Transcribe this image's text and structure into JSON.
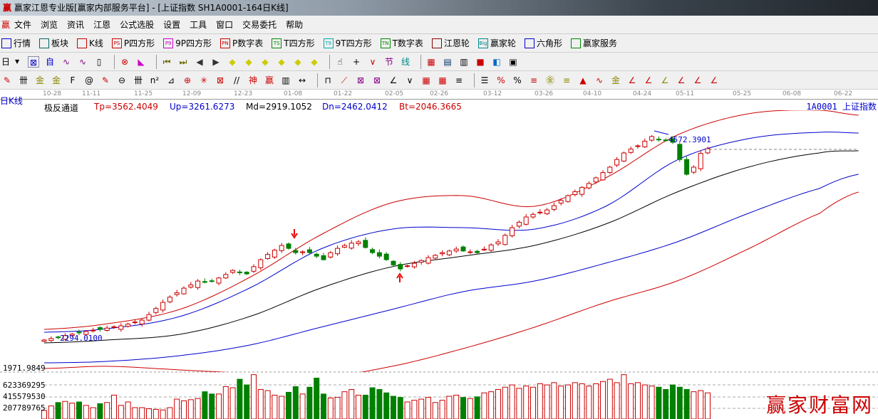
{
  "window": {
    "title": "赢家江恩专业版[赢家内部服务平台] - [上证指数  SH1A0001-164日K线]",
    "logo": "赢"
  },
  "menu": [
    "文件",
    "浏览",
    "资讯",
    "江恩",
    "公式选股",
    "设置",
    "工具",
    "窗口",
    "交易委托",
    "帮助"
  ],
  "toolbar1": [
    {
      "icon": "grid-icon",
      "label": "行情"
    },
    {
      "icon": "blocks-icon",
      "label": "板块"
    },
    {
      "icon": "candle-icon",
      "label": "K线"
    },
    {
      "icon": "PS",
      "label": "P四方形"
    },
    {
      "icon": "P9",
      "label": "9P四方形"
    },
    {
      "icon": "PN",
      "label": "P数字表"
    },
    {
      "icon": "TS",
      "label": "T四方形"
    },
    {
      "icon": "T9",
      "label": "9T四方形"
    },
    {
      "icon": "TN",
      "label": "T数字表"
    },
    {
      "icon": "target-icon",
      "label": "江恩轮"
    },
    {
      "icon": "Big",
      "label": "赢家轮"
    },
    {
      "icon": "hexagon-icon",
      "label": "六角形"
    },
    {
      "icon": "dollar-icon",
      "label": "赢家服务"
    }
  ],
  "period": "日",
  "header": {
    "left": "日K线",
    "indicator": "极反通道",
    "tp": "Tp=3562.4049",
    "up": "Up=3261.6273",
    "md": "Md=2919.1052",
    "dn": "Dn=2462.0412",
    "bt": "Bt=2046.3665",
    "symbol": "1A0001 上证指数"
  },
  "dates": [
    "10-28",
    "11-11",
    "11-25",
    "12-09",
    "12-23",
    "01-08",
    "01-22",
    "02-05",
    "02-26",
    "03-12",
    "03-26",
    "04-10",
    "04-24",
    "05-11",
    "05-25",
    "06-08",
    "06-22"
  ],
  "annotations": {
    "low": "2294.0100",
    "high": "4572.3901",
    "band_floor": "1971.9849"
  },
  "volume_axis": [
    "623369295",
    "415579530",
    "207789765"
  ],
  "watermark": "赢家财富网",
  "colors": {
    "up": "#cc0000",
    "down": "#008000",
    "tp": "#cc0000",
    "upband": "#0000cc",
    "md": "#000000",
    "dn": "#0000cc",
    "bt": "#cc0000"
  },
  "chart_data": {
    "type": "candlestick",
    "closes": [
      2278,
      2295,
      2310,
      2330,
      2345,
      2360,
      2376,
      2390,
      2400,
      2415,
      2430,
      2441,
      2460,
      2485,
      2506,
      2570,
      2640,
      2710,
      2770,
      2820,
      2873,
      2910,
      2955,
      2940,
      2955,
      2990,
      3030,
      3077,
      3050,
      3037,
      3120,
      3200,
      3260,
      3310,
      3363,
      3330,
      3281,
      3290,
      3281,
      3240,
      3200,
      3280,
      3330,
      3363,
      3390,
      3404,
      3340,
      3281,
      3240,
      3200,
      3140,
      3094,
      3130,
      3159,
      3190,
      3224,
      3250,
      3280,
      3300,
      3322,
      3300,
      3290,
      3281,
      3320,
      3370,
      3404,
      3480,
      3567,
      3630,
      3690,
      3720,
      3745,
      3771,
      3820,
      3880,
      3935,
      3980,
      4030,
      4074,
      4140,
      4200,
      4262,
      4350,
      4425,
      4470,
      4507,
      4560,
      4613,
      4580,
      4570,
      4548,
      4350,
      4180,
      4262,
      4420,
      4474
    ],
    "volumes_m": [
      150,
      230,
      290,
      310,
      280,
      300,
      240,
      200,
      270,
      290,
      420,
      240,
      300,
      200,
      200,
      180,
      170,
      160,
      200,
      350,
      320,
      340,
      360,
      480,
      440,
      440,
      570,
      550,
      700,
      600,
      780,
      520,
      500,
      420,
      400,
      470,
      570,
      440,
      560,
      720,
      440,
      370,
      380,
      480,
      520,
      420,
      420,
      550,
      520,
      460,
      400,
      380,
      300,
      330,
      350,
      380,
      290,
      330,
      400,
      420,
      380,
      360,
      390,
      460,
      480,
      520,
      560,
      600,
      540,
      580,
      560,
      620,
      600,
      640,
      580,
      600,
      640,
      620,
      580,
      620,
      660,
      700,
      640,
      780,
      620,
      640,
      600,
      580,
      560,
      520,
      600,
      560,
      520,
      480,
      500,
      460
    ],
    "bands": {
      "index": [
        0,
        9,
        19.4,
        29.4,
        39.6,
        49.8,
        60,
        70.2,
        80.4,
        90.6,
        100.8,
        111,
        116.6
      ],
      "Tp": [
        2400,
        2465,
        2629,
        2996,
        3486,
        3854,
        3935,
        3813,
        4139,
        4629,
        4874,
        4915,
        4858
      ],
      "Up": [
        2367,
        2408,
        2547,
        2874,
        3323,
        3551,
        3568,
        3551,
        3813,
        4343,
        4588,
        4662,
        4654
      ],
      "Md": [
        2245,
        2278,
        2343,
        2547,
        2874,
        3119,
        3241,
        3364,
        3609,
        3976,
        4262,
        4425,
        4450
      ],
      "Dn": [
        2016,
        2033,
        2098,
        2220,
        2425,
        2629,
        2833,
        2955,
        3160,
        3404,
        3731,
        4017,
        4180
      ],
      "Bt": [
        1951,
        1976,
        1935,
        1894,
        1853,
        1976,
        2180,
        2425,
        2710,
        2955,
        3323,
        3731,
        3976
      ]
    }
  }
}
